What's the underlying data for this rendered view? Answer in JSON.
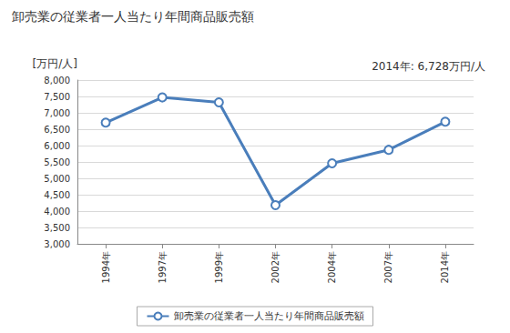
{
  "chart_data": {
    "type": "line",
    "title": "卸売業の従業者一人当たり年間商品販売額",
    "y_label": "[万円/人]",
    "annotation": "2014年: 6,728万円/人",
    "categories": [
      "1994年",
      "1997年",
      "1999年",
      "2002年",
      "2004年",
      "2007年",
      "2014年"
    ],
    "series": [
      {
        "name": "卸売業の従業者一人当たり年間商品販売額",
        "color": "#4a7ebb",
        "marker": "circle",
        "values": [
          6700,
          7470,
          7320,
          4180,
          5460,
          5870,
          6728
        ]
      }
    ],
    "ylim": [
      3000,
      8000
    ],
    "yticks": [
      {
        "value": 3000,
        "label": "3,000"
      },
      {
        "value": 3500,
        "label": "3,500"
      },
      {
        "value": 4000,
        "label": "4,000"
      },
      {
        "value": 4500,
        "label": "4,500"
      },
      {
        "value": 5000,
        "label": "5,000"
      },
      {
        "value": 5500,
        "label": "5,500"
      },
      {
        "value": 6000,
        "label": "6,000"
      },
      {
        "value": 6500,
        "label": "6,500"
      },
      {
        "value": 7000,
        "label": "7,000"
      },
      {
        "value": 7500,
        "label": "7,500"
      },
      {
        "value": 8000,
        "label": "8,000"
      }
    ],
    "grid": true,
    "legend": "bottom"
  }
}
